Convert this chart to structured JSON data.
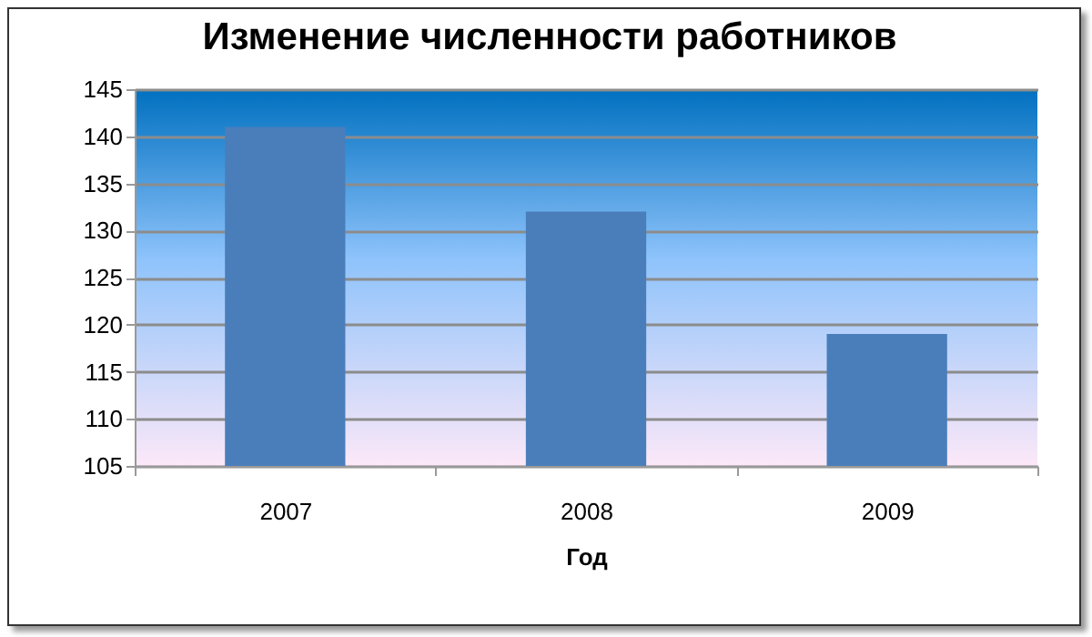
{
  "chart_data": {
    "type": "bar",
    "title": "Изменение численности работников",
    "xlabel": "Год",
    "categories": [
      "2007",
      "2008",
      "2009"
    ],
    "values": [
      141,
      132,
      119
    ],
    "color": "#4a7ebb",
    "ylim": [
      105,
      145
    ],
    "yticks": [
      105,
      110,
      115,
      120,
      125,
      130,
      135,
      140,
      145
    ],
    "grid": "y"
  }
}
